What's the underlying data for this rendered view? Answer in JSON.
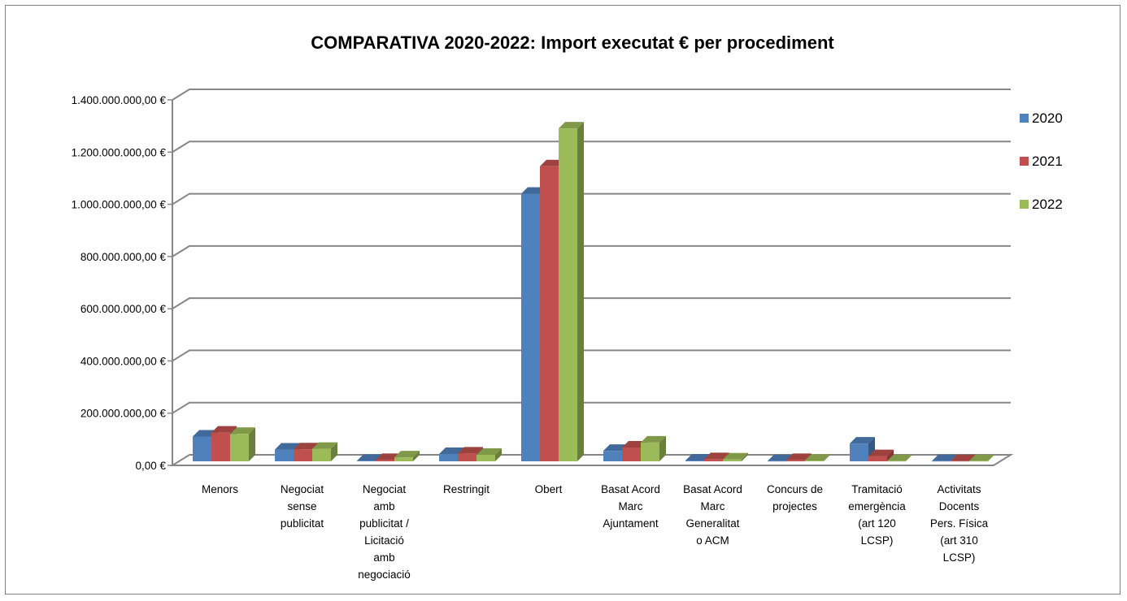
{
  "chart_data": {
    "type": "bar",
    "title": "COMPARATIVA 2020-2022: Import executat € per procediment",
    "xlabel": "",
    "ylabel": "",
    "ylim": [
      0,
      1400000000
    ],
    "yticks": [
      0,
      200000000,
      400000000,
      600000000,
      800000000,
      1000000000,
      1200000000,
      1400000000
    ],
    "ytick_labels": [
      "0,00 €",
      "200.000.000,00 €",
      "400.000.000,00 €",
      "600.000.000,00 €",
      "800.000.000,00 €",
      "1.000.000.000,00 €",
      "1.200.000.000,00 €",
      "1.400.000.000,00 €"
    ],
    "grid": true,
    "legend_position": "right",
    "categories": [
      [
        "Menors"
      ],
      [
        "Negociat",
        "sense",
        "publicitat"
      ],
      [
        "Negociat",
        "amb",
        "publicitat /",
        "Licitació",
        "amb",
        "negociació"
      ],
      [
        "Restringit"
      ],
      [
        "Obert"
      ],
      [
        "Basat Acord",
        "Marc",
        "Ajuntament"
      ],
      [
        "Basat Acord",
        "Marc",
        "Generalitat",
        "o ACM"
      ],
      [
        "Concurs de",
        "projectes"
      ],
      [
        "Tramitació",
        "emergència",
        "(art 120",
        "LCSP)"
      ],
      [
        "Activitats",
        "Docents",
        "Pers. Física",
        "(art 310",
        "LCSP)"
      ]
    ],
    "series": [
      {
        "name": "2020",
        "color": "#4F81BD",
        "values": [
          95000000,
          45000000,
          2000000,
          28000000,
          1025000000,
          40000000,
          3000000,
          1000000,
          68000000,
          1000000
        ]
      },
      {
        "name": "2021",
        "color": "#C0504D",
        "values": [
          110000000,
          46000000,
          5000000,
          30000000,
          1130000000,
          53000000,
          8000000,
          5000000,
          20000000,
          1000000
        ]
      },
      {
        "name": "2022",
        "color": "#9BBB59",
        "values": [
          105000000,
          48000000,
          15000000,
          25000000,
          1275000000,
          72000000,
          7000000,
          3000000,
          1000000,
          1000000
        ]
      }
    ]
  }
}
